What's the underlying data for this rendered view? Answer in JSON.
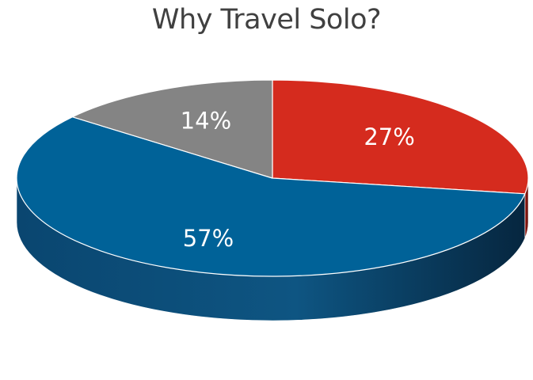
{
  "chart_data": {
    "type": "pie",
    "title": "Why Travel Solo?",
    "slices": [
      {
        "value": 27,
        "label": "27%",
        "color": "#d52b1e"
      },
      {
        "value": 57,
        "label": "57%",
        "color": "#006298"
      },
      {
        "value": 14,
        "label": "14%",
        "color": "#848484"
      }
    ],
    "style": "3d",
    "legend": "none"
  }
}
